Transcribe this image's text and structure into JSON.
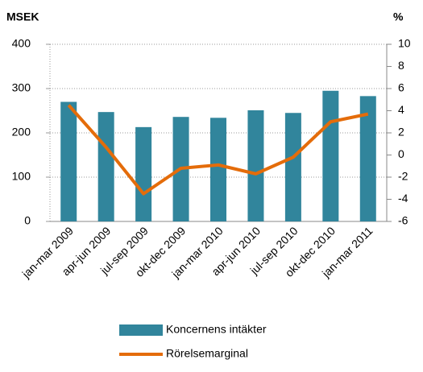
{
  "chart_data": {
    "type": "bar",
    "ylabel": "MSEK",
    "y2label": "%",
    "categories": [
      "jan-mar 2009",
      "apr-jun 2009",
      "jul-sep 2009",
      "okt-dec 2009",
      "jan-mar 2010",
      "apr-jun 2010",
      "jul-sep 2010",
      "okt-dec 2010",
      "jan-mar 2011"
    ],
    "series": [
      {
        "name": "Koncernens intäkter",
        "type": "bar",
        "color": "#31859c",
        "values": [
          270,
          247,
          213,
          236,
          234,
          251,
          245,
          295,
          283
        ]
      },
      {
        "name": "Rörelsemarginal",
        "type": "line",
        "axis": "y2",
        "color": "#e46c0a",
        "values": [
          4.5,
          0.7,
          -3.5,
          -1.2,
          -0.9,
          -1.7,
          -0.2,
          3.0,
          3.7
        ]
      }
    ],
    "ylim": [
      0,
      400
    ],
    "yticks": [
      0,
      100,
      200,
      300,
      400
    ],
    "y2lim": [
      -6,
      10
    ],
    "y2ticks": [
      -6,
      -4,
      -2,
      0,
      2,
      4,
      6,
      8,
      10
    ],
    "grid": true,
    "legend": "bottom"
  }
}
